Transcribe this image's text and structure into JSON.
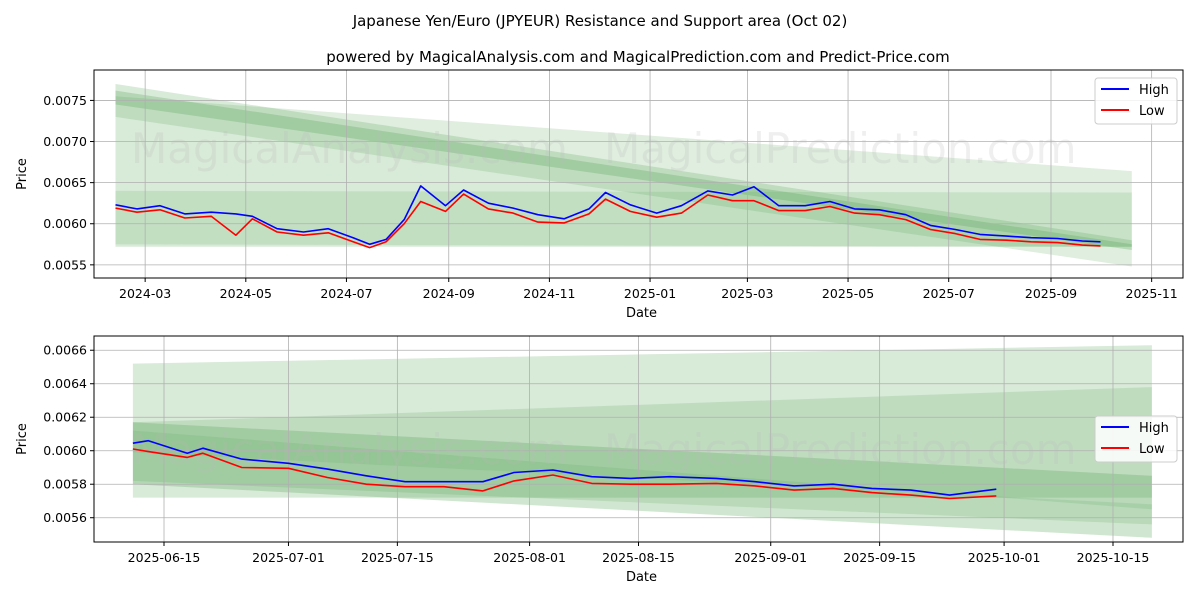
{
  "chart_data": [
    {
      "type": "line",
      "title": "Japanese Yen/Euro (JPYEUR) Resistance and Support area (Oct 02)",
      "subtitle": "powered by MagicalAnalysis.com and MagicalPrediction.com and Predict-Price.com",
      "xlabel": "Date",
      "ylabel": "Price",
      "xlim": [
        "2024-01-30",
        "2025-11-20"
      ],
      "ylim": [
        0.00534,
        0.00787
      ],
      "grid": true,
      "legend_position": "top-right",
      "x_tick_labels": [
        "2024-03",
        "2024-05",
        "2024-07",
        "2024-09",
        "2024-11",
        "2025-01",
        "2025-03",
        "2025-05",
        "2025-07",
        "2025-09",
        "2025-11"
      ],
      "x_ticks": [
        "2024-03-01",
        "2024-05-01",
        "2024-07-01",
        "2024-09-01",
        "2024-11-01",
        "2025-01-01",
        "2025-03-01",
        "2025-05-01",
        "2025-07-01",
        "2025-09-01",
        "2025-11-01"
      ],
      "y_ticks": [
        0.0055,
        0.006,
        0.0065,
        0.007,
        0.0075
      ],
      "y_tick_labels": [
        "0.0055",
        "0.0060",
        "0.0065",
        "0.0070",
        "0.0075"
      ],
      "series": [
        {
          "name": "High",
          "color": "#0000ff",
          "x": [
            "2024-02-12",
            "2024-02-25",
            "2024-03-10",
            "2024-03-25",
            "2024-04-10",
            "2024-04-25",
            "2024-05-05",
            "2024-05-20",
            "2024-06-05",
            "2024-06-20",
            "2024-07-05",
            "2024-07-15",
            "2024-07-25",
            "2024-08-05",
            "2024-08-15",
            "2024-08-30",
            "2024-09-10",
            "2024-09-25",
            "2024-10-10",
            "2024-10-25",
            "2024-11-10",
            "2024-11-25",
            "2024-12-05",
            "2024-12-20",
            "2025-01-05",
            "2025-01-20",
            "2025-02-05",
            "2025-02-20",
            "2025-03-05",
            "2025-03-20",
            "2025-04-05",
            "2025-04-20",
            "2025-05-05",
            "2025-05-20",
            "2025-06-05",
            "2025-06-20",
            "2025-07-05",
            "2025-07-20",
            "2025-08-05",
            "2025-08-20",
            "2025-09-05",
            "2025-09-20",
            "2025-10-01"
          ],
          "values": [
            0.00623,
            0.00618,
            0.00622,
            0.00612,
            0.00614,
            0.00612,
            0.00609,
            0.00594,
            0.0059,
            0.00594,
            0.00583,
            0.00575,
            0.00581,
            0.00605,
            0.00646,
            0.00622,
            0.00641,
            0.00625,
            0.00619,
            0.00611,
            0.00606,
            0.00618,
            0.00638,
            0.00623,
            0.00613,
            0.00622,
            0.0064,
            0.00635,
            0.00645,
            0.00622,
            0.00622,
            0.00627,
            0.00618,
            0.00617,
            0.00611,
            0.00598,
            0.00593,
            0.00587,
            0.00585,
            0.00583,
            0.00582,
            0.00579,
            0.00578
          ]
        },
        {
          "name": "Low",
          "color": "#ff0000",
          "x": [
            "2024-02-12",
            "2024-02-25",
            "2024-03-10",
            "2024-03-25",
            "2024-04-10",
            "2024-04-25",
            "2024-05-05",
            "2024-05-20",
            "2024-06-05",
            "2024-06-20",
            "2024-07-05",
            "2024-07-15",
            "2024-07-25",
            "2024-08-05",
            "2024-08-15",
            "2024-08-30",
            "2024-09-10",
            "2024-09-25",
            "2024-10-10",
            "2024-10-25",
            "2024-11-10",
            "2024-11-25",
            "2024-12-05",
            "2024-12-20",
            "2025-01-05",
            "2025-01-20",
            "2025-02-05",
            "2025-02-20",
            "2025-03-05",
            "2025-03-20",
            "2025-04-05",
            "2025-04-20",
            "2025-05-05",
            "2025-05-20",
            "2025-06-05",
            "2025-06-20",
            "2025-07-05",
            "2025-07-20",
            "2025-08-05",
            "2025-08-20",
            "2025-09-05",
            "2025-09-20",
            "2025-10-01"
          ],
          "values": [
            0.00619,
            0.00614,
            0.00617,
            0.00607,
            0.00609,
            0.00586,
            0.00606,
            0.0059,
            0.00586,
            0.00589,
            0.00578,
            0.00571,
            0.00578,
            0.006,
            0.00627,
            0.00615,
            0.00636,
            0.00618,
            0.00613,
            0.00602,
            0.00601,
            0.00612,
            0.0063,
            0.00615,
            0.00608,
            0.00613,
            0.00635,
            0.00628,
            0.00628,
            0.00616,
            0.00616,
            0.00621,
            0.00613,
            0.00611,
            0.00605,
            0.00593,
            0.00588,
            0.00581,
            0.0058,
            0.00578,
            0.00577,
            0.00574,
            0.00573
          ]
        }
      ],
      "bands": [
        {
          "x0": "2024-02-12",
          "x1": "2025-10-20",
          "y0_top": 0.0077,
          "y1_top": 0.0058,
          "y0_bottom": 0.00572,
          "y1_bottom": 0.00572
        },
        {
          "x0": "2024-02-12",
          "x1": "2025-10-20",
          "y0_top": 0.00755,
          "y1_top": 0.00664,
          "y0_bottom": 0.0073,
          "y1_bottom": 0.00548
        },
        {
          "x0": "2024-02-12",
          "x1": "2025-10-20",
          "y0_top": 0.0064,
          "y1_top": 0.00638,
          "y0_bottom": 0.00575,
          "y1_bottom": 0.00572
        },
        {
          "x0": "2024-02-12",
          "x1": "2025-10-20",
          "y0_top": 0.00762,
          "y1_top": 0.00575,
          "y0_bottom": 0.00745,
          "y1_bottom": 0.00568
        }
      ]
    },
    {
      "type": "line",
      "xlabel": "Date",
      "ylabel": "Price",
      "xlim": [
        "2025-06-06",
        "2025-10-24"
      ],
      "ylim": [
        0.005455,
        0.006685
      ],
      "grid": true,
      "legend_position": "right",
      "x_tick_labels": [
        "2025-06-15",
        "2025-07-01",
        "2025-07-15",
        "2025-08-01",
        "2025-08-15",
        "2025-09-01",
        "2025-09-15",
        "2025-10-01",
        "2025-10-15"
      ],
      "x_ticks": [
        "2025-06-15",
        "2025-07-01",
        "2025-07-15",
        "2025-08-01",
        "2025-08-15",
        "2025-09-01",
        "2025-09-15",
        "2025-10-01",
        "2025-10-15"
      ],
      "y_ticks": [
        0.0056,
        0.0058,
        0.006,
        0.0062,
        0.0064,
        0.0066
      ],
      "y_tick_labels": [
        "0.0056",
        "0.0058",
        "0.0060",
        "0.0062",
        "0.0064",
        "0.0066"
      ],
      "series": [
        {
          "name": "High",
          "color": "#0000ff",
          "x": [
            "2025-06-11",
            "2025-06-13",
            "2025-06-18",
            "2025-06-20",
            "2025-06-25",
            "2025-07-01",
            "2025-07-06",
            "2025-07-11",
            "2025-07-16",
            "2025-07-21",
            "2025-07-26",
            "2025-07-30",
            "2025-08-04",
            "2025-08-09",
            "2025-08-14",
            "2025-08-19",
            "2025-08-25",
            "2025-08-30",
            "2025-09-04",
            "2025-09-09",
            "2025-09-14",
            "2025-09-19",
            "2025-09-24",
            "2025-09-30"
          ],
          "values": [
            0.006045,
            0.00606,
            0.005985,
            0.006015,
            0.00595,
            0.005925,
            0.00589,
            0.00585,
            0.005815,
            0.005815,
            0.005815,
            0.00587,
            0.005885,
            0.005845,
            0.005835,
            0.005845,
            0.005835,
            0.005815,
            0.00579,
            0.0058,
            0.005775,
            0.005765,
            0.005735,
            0.00577
          ]
        },
        {
          "name": "Low",
          "color": "#ff0000",
          "x": [
            "2025-06-11",
            "2025-06-13",
            "2025-06-18",
            "2025-06-20",
            "2025-06-25",
            "2025-07-01",
            "2025-07-06",
            "2025-07-11",
            "2025-07-16",
            "2025-07-21",
            "2025-07-26",
            "2025-07-30",
            "2025-08-04",
            "2025-08-09",
            "2025-08-14",
            "2025-08-19",
            "2025-08-25",
            "2025-08-30",
            "2025-09-04",
            "2025-09-09",
            "2025-09-14",
            "2025-09-19",
            "2025-09-24",
            "2025-09-30"
          ],
          "values": [
            0.00601,
            0.005995,
            0.00596,
            0.005985,
            0.0059,
            0.005895,
            0.00584,
            0.0058,
            0.005785,
            0.005785,
            0.00576,
            0.00582,
            0.005855,
            0.005805,
            0.0058,
            0.0058,
            0.005805,
            0.00579,
            0.005765,
            0.005775,
            0.00575,
            0.005735,
            0.005715,
            0.00573
          ]
        }
      ],
      "bands": [
        {
          "x0": "2025-06-11",
          "x1": "2025-10-20",
          "y0_top": 0.00652,
          "y1_top": 0.00663,
          "y0_bottom": 0.00572,
          "y1_bottom": 0.00572
        },
        {
          "x0": "2025-06-11",
          "x1": "2025-10-20",
          "y0_top": 0.00617,
          "y1_top": 0.00638,
          "y0_bottom": 0.00582,
          "y1_bottom": 0.00556
        },
        {
          "x0": "2025-06-11",
          "x1": "2025-10-20",
          "y0_top": 0.00612,
          "y1_top": 0.00565,
          "y0_bottom": 0.00599,
          "y1_bottom": 0.00568
        },
        {
          "x0": "2025-06-11",
          "x1": "2025-10-20",
          "y0_top": 0.00617,
          "y1_top": 0.00585,
          "y0_bottom": 0.0058,
          "y1_bottom": 0.00548
        }
      ]
    }
  ],
  "watermarks": [
    "MagicalAnalysis.com",
    "MagicalPrediction.com"
  ],
  "legend": {
    "high_label": "High",
    "low_label": "Low"
  }
}
